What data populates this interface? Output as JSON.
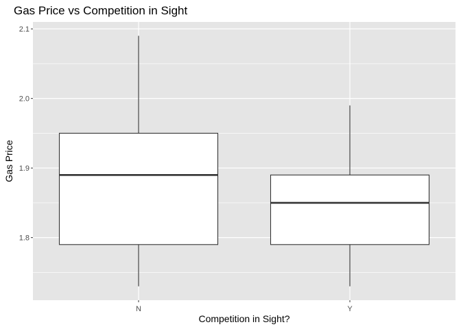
{
  "chart_data": {
    "type": "boxplot",
    "title": "Gas Price vs Competition in Sight",
    "xlabel": "Competition in Sight?",
    "ylabel": "Gas Price",
    "categories": [
      "N",
      "Y"
    ],
    "boxes": [
      {
        "category": "N",
        "min": 1.73,
        "q1": 1.79,
        "median": 1.89,
        "q3": 1.95,
        "max": 2.09
      },
      {
        "category": "Y",
        "min": 1.73,
        "q1": 1.79,
        "median": 1.85,
        "q3": 1.89,
        "max": 1.99
      }
    ],
    "ylim": [
      1.71,
      2.11
    ],
    "yticks": [
      "1.8",
      "1.9",
      "2.0",
      "2.1"
    ],
    "grid": true,
    "colors": {
      "panel": "#e5e5e5",
      "grid": "#ffffff",
      "box_fill": "#ffffff",
      "box_line": "#333333"
    }
  }
}
